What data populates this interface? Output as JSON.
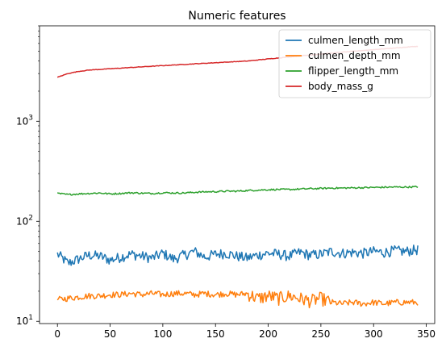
{
  "chart_data": {
    "type": "line",
    "title": "Numeric features",
    "xlabel": "",
    "ylabel": "",
    "xlim": [
      -17,
      358
    ],
    "ylim": [
      9.5,
      9000
    ],
    "yscale": "log",
    "grid": false,
    "legend_position": "top-right",
    "x_ticks": [
      0,
      50,
      100,
      150,
      200,
      250,
      300,
      350
    ],
    "x_tick_labels": [
      "0",
      "50",
      "100",
      "150",
      "200",
      "250",
      "300",
      "350"
    ],
    "y_ticks": [
      10,
      100,
      1000
    ],
    "y_tick_labels": [
      {
        "base": "10",
        "exp": "1"
      },
      {
        "base": "10",
        "exp": "2"
      },
      {
        "base": "10",
        "exp": "3"
      }
    ],
    "n_points": 343,
    "series": [
      {
        "name": "culmen_length_mm",
        "color": "#1f77b4",
        "values_every_10": [
          47,
          38,
          42,
          46,
          45,
          41,
          44,
          47,
          45,
          43,
          48,
          42,
          46,
          50,
          44,
          47,
          48,
          45,
          43,
          46,
          48,
          47,
          45,
          49,
          46,
          47,
          50,
          48,
          49,
          48,
          50,
          49,
          51,
          50,
          52
        ],
        "x_range": [
          0,
          342
        ]
      },
      {
        "name": "culmen_depth_mm",
        "color": "#ff7f0e",
        "values_every_10": [
          16.5,
          17,
          17.5,
          18,
          18,
          18.5,
          18.5,
          19,
          18.5,
          19,
          18.5,
          19,
          19,
          18.5,
          19,
          18.5,
          19,
          18.5,
          19,
          17,
          18,
          17,
          18,
          17,
          16,
          17,
          15.5,
          15,
          15.5,
          15,
          15.5,
          15,
          15.5,
          15.5,
          15.5
        ],
        "x_range": [
          0,
          342
        ]
      },
      {
        "name": "flipper_length_mm",
        "color": "#2ca02c",
        "values_every_10": [
          190,
          185,
          188,
          190,
          192,
          188,
          190,
          193,
          191,
          190,
          193,
          192,
          192,
          195,
          197,
          198,
          200,
          200,
          203,
          205,
          207,
          208,
          208,
          210,
          212,
          213,
          215,
          215,
          216,
          217,
          218,
          219,
          220,
          220,
          221
        ],
        "x_range": [
          0,
          342
        ]
      },
      {
        "name": "body_mass_g",
        "color": "#d62728",
        "values_every_10": [
          2750,
          3000,
          3150,
          3250,
          3300,
          3350,
          3400,
          3450,
          3500,
          3550,
          3600,
          3650,
          3700,
          3750,
          3800,
          3850,
          3900,
          3950,
          4000,
          4100,
          4200,
          4300,
          4400,
          4500,
          4600,
          4700,
          4800,
          4900,
          5000,
          5100,
          5200,
          5300,
          5400,
          5500,
          5600
        ],
        "x_range": [
          0,
          342
        ]
      }
    ]
  }
}
